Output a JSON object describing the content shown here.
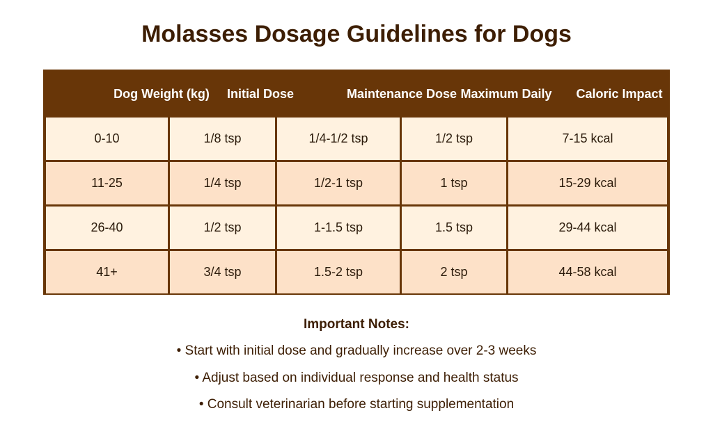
{
  "title": "Molasses Dosage Guidelines for Dogs",
  "table": {
    "headers": [
      "Dog Weight (kg)",
      "Initial Dose",
      "Maintenance Dose",
      "Maximum Daily",
      "Caloric Impact"
    ],
    "rows": [
      [
        "0-10",
        "1/8 tsp",
        "1/4-1/2 tsp",
        "1/2 tsp",
        "7-15 kcal"
      ],
      [
        "11-25",
        "1/4 tsp",
        "1/2-1 tsp",
        "1 tsp",
        "15-29 kcal"
      ],
      [
        "26-40",
        "1/2 tsp",
        "1-1.5 tsp",
        "1.5 tsp",
        "29-44 kcal"
      ],
      [
        "41+",
        "3/4 tsp",
        "1.5-2 tsp",
        "2 tsp",
        "44-58 kcal"
      ]
    ]
  },
  "notes": {
    "title": "Important Notes:",
    "items": [
      "• Start with initial dose and gradually increase over 2-3 weeks",
      "• Adjust based on individual response and health status",
      "• Consult veterinarian before starting supplementation"
    ]
  },
  "colors": {
    "header_bg": "#683608",
    "row_light": "#fff2e0",
    "row_dark": "#fde1c8",
    "text_dark": "#3d1e04"
  }
}
